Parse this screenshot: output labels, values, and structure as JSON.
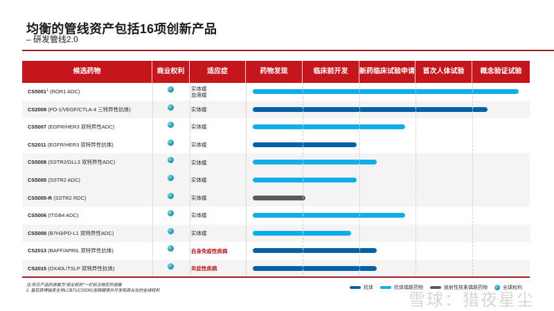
{
  "header": {
    "title": "均衡的管线资产包括16项创新产品",
    "subtitle": "– 研发管线2.0"
  },
  "colors": {
    "header_red": "#c5161d",
    "rule_red": "#9b1b21",
    "antibody": "#0562a8",
    "adc": "#0eaee8",
    "rdc": "#595959",
    "indication_red": "#b0141a"
  },
  "table": {
    "columns": [
      "候选药物",
      "商业权利",
      "适应症",
      "药物发现",
      "临床前开发",
      "新药临床试验申请",
      "首次人体试验",
      "概念验证试验"
    ]
  },
  "chart_data": {
    "type": "gantt-bar",
    "title": "均衡的管线资产包括16项创新产品",
    "subtitle": "– 研发管线2.0",
    "stages": [
      "药物发现",
      "临床前开发",
      "新药临床试验申请",
      "首次人体试验",
      "概念验证试验"
    ],
    "legend": [
      "抗体",
      "抗体偶联药物",
      "放射性核素偶联药物",
      "全球权利"
    ],
    "rows": [
      {
        "code": "CS5001",
        "sup": "1",
        "desc": "(ROR1 ADC)",
        "rights": "全球权利",
        "indication": [
          "实体瘤",
          "血液瘤"
        ],
        "type": "抗体偶联药物",
        "progress": 4.8
      },
      {
        "code": "CS2009",
        "sup": "",
        "desc": "(PD-1/VEGF/CTLA-4 三特异性抗体)",
        "rights": "全球权利",
        "indication": [
          "实体瘤"
        ],
        "type": "抗体",
        "progress": 4.25
      },
      {
        "code": "CS5007",
        "sup": "",
        "desc": "(EGFR/HER3 双特异性ADC)",
        "rights": "全球权利",
        "indication": [
          "实体瘤"
        ],
        "type": "抗体偶联药物",
        "progress": 2.8
      },
      {
        "code": "CS2011",
        "sup": "",
        "desc": "(EGFR/HER3 双特异性抗体)",
        "rights": "全球权利",
        "indication": [
          "实体瘤"
        ],
        "type": "抗体",
        "progress": 1.95
      },
      {
        "code": "CS5008",
        "sup": "",
        "desc": "(SSTR2/DLL3 双特异性ADC)",
        "rights": "全球权利",
        "indication": [
          "实体瘤"
        ],
        "type": "抗体偶联药物",
        "progress": 2.3
      },
      {
        "code": "CS5005",
        "sup": "",
        "desc": "(SSTR2 ADC)",
        "rights": "全球权利",
        "indication": [
          "实体瘤"
        ],
        "type": "抗体偶联药物",
        "progress": 1.95
      },
      {
        "code": "CS5005-R",
        "sup": "",
        "desc": "(SSTR2 RDC)",
        "rights": "全球权利",
        "indication": [
          "实体瘤"
        ],
        "type": "放射性核素偶联药物",
        "progress": 1.05
      },
      {
        "code": "CS5006",
        "sup": "",
        "desc": "(ITGB4 ADC)",
        "rights": "全球权利",
        "indication": [
          "实体瘤"
        ],
        "type": "抗体偶联药物",
        "progress": 2.8
      },
      {
        "code": "CS5009",
        "sup": "",
        "desc": "(B7H3/PD-L1 双特异性ADC)",
        "rights": "全球权利",
        "indication": [
          "实体瘤"
        ],
        "type": "抗体偶联药物",
        "progress": 1.85
      },
      {
        "code": "CS2013",
        "sup": "",
        "desc": "(BAFF/APRIL 双特异性抗体)",
        "rights": "全球权利",
        "indication": [
          "自身免疫性疾病"
        ],
        "type": "抗体",
        "progress": 2.3
      },
      {
        "code": "CS2015",
        "sup": "",
        "desc": "(OX40L/TSLP 双特异性抗体)",
        "rights": "全球权利",
        "indication": [
          "炎症性疾病"
        ],
        "type": "抗体",
        "progress": 2.3
      }
    ]
  },
  "notes": {
    "line1": "注:所示产品的进展为“商业权利”一栏标注地区的进展",
    "line2": "1. 基石获得独家主导LCB71/CS5001在韩国境外开发和商业化的全球权利"
  },
  "legend": {
    "antibody": "抗体",
    "adc": "抗体偶联药物",
    "rdc": "放射性核素偶联药物",
    "global": "全球权利"
  },
  "watermark": "雪球：猎夜星尘"
}
